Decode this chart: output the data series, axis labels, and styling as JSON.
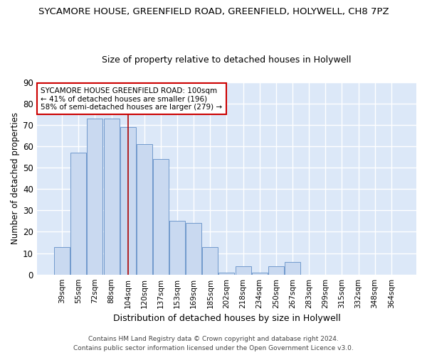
{
  "title_line1": "SYCAMORE HOUSE, GREENFIELD ROAD, GREENFIELD, HOLYWELL, CH8 7PZ",
  "title_line2": "Size of property relative to detached houses in Holywell",
  "xlabel": "Distribution of detached houses by size in Holywell",
  "ylabel": "Number of detached properties",
  "categories": [
    "39sqm",
    "55sqm",
    "72sqm",
    "88sqm",
    "104sqm",
    "120sqm",
    "137sqm",
    "153sqm",
    "169sqm",
    "185sqm",
    "202sqm",
    "218sqm",
    "234sqm",
    "250sqm",
    "267sqm",
    "283sqm",
    "299sqm",
    "315sqm",
    "332sqm",
    "348sqm",
    "364sqm"
  ],
  "values": [
    13,
    57,
    73,
    73,
    69,
    61,
    54,
    25,
    24,
    13,
    1,
    4,
    1,
    4,
    6,
    0,
    0,
    0,
    0,
    0,
    0
  ],
  "bar_color": "#c9d9f0",
  "bar_edge_color": "#7099cc",
  "vline_x": 4,
  "vline_color": "#aa0000",
  "annotation_text": "SYCAMORE HOUSE GREENFIELD ROAD: 100sqm\n← 41% of detached houses are smaller (196)\n58% of semi-detached houses are larger (279) →",
  "annotation_box_color": "#ffffff",
  "annotation_box_edge": "#cc0000",
  "ylim": [
    0,
    90
  ],
  "yticks": [
    0,
    10,
    20,
    30,
    40,
    50,
    60,
    70,
    80,
    90
  ],
  "footer_line1": "Contains HM Land Registry data © Crown copyright and database right 2024.",
  "footer_line2": "Contains public sector information licensed under the Open Government Licence v3.0.",
  "fig_background_color": "#ffffff",
  "plot_bg_color": "#dce8f8",
  "grid_color": "#ffffff",
  "title1_fontsize": 9.5,
  "title2_fontsize": 9,
  "xlabel_fontsize": 9,
  "ylabel_fontsize": 8.5
}
